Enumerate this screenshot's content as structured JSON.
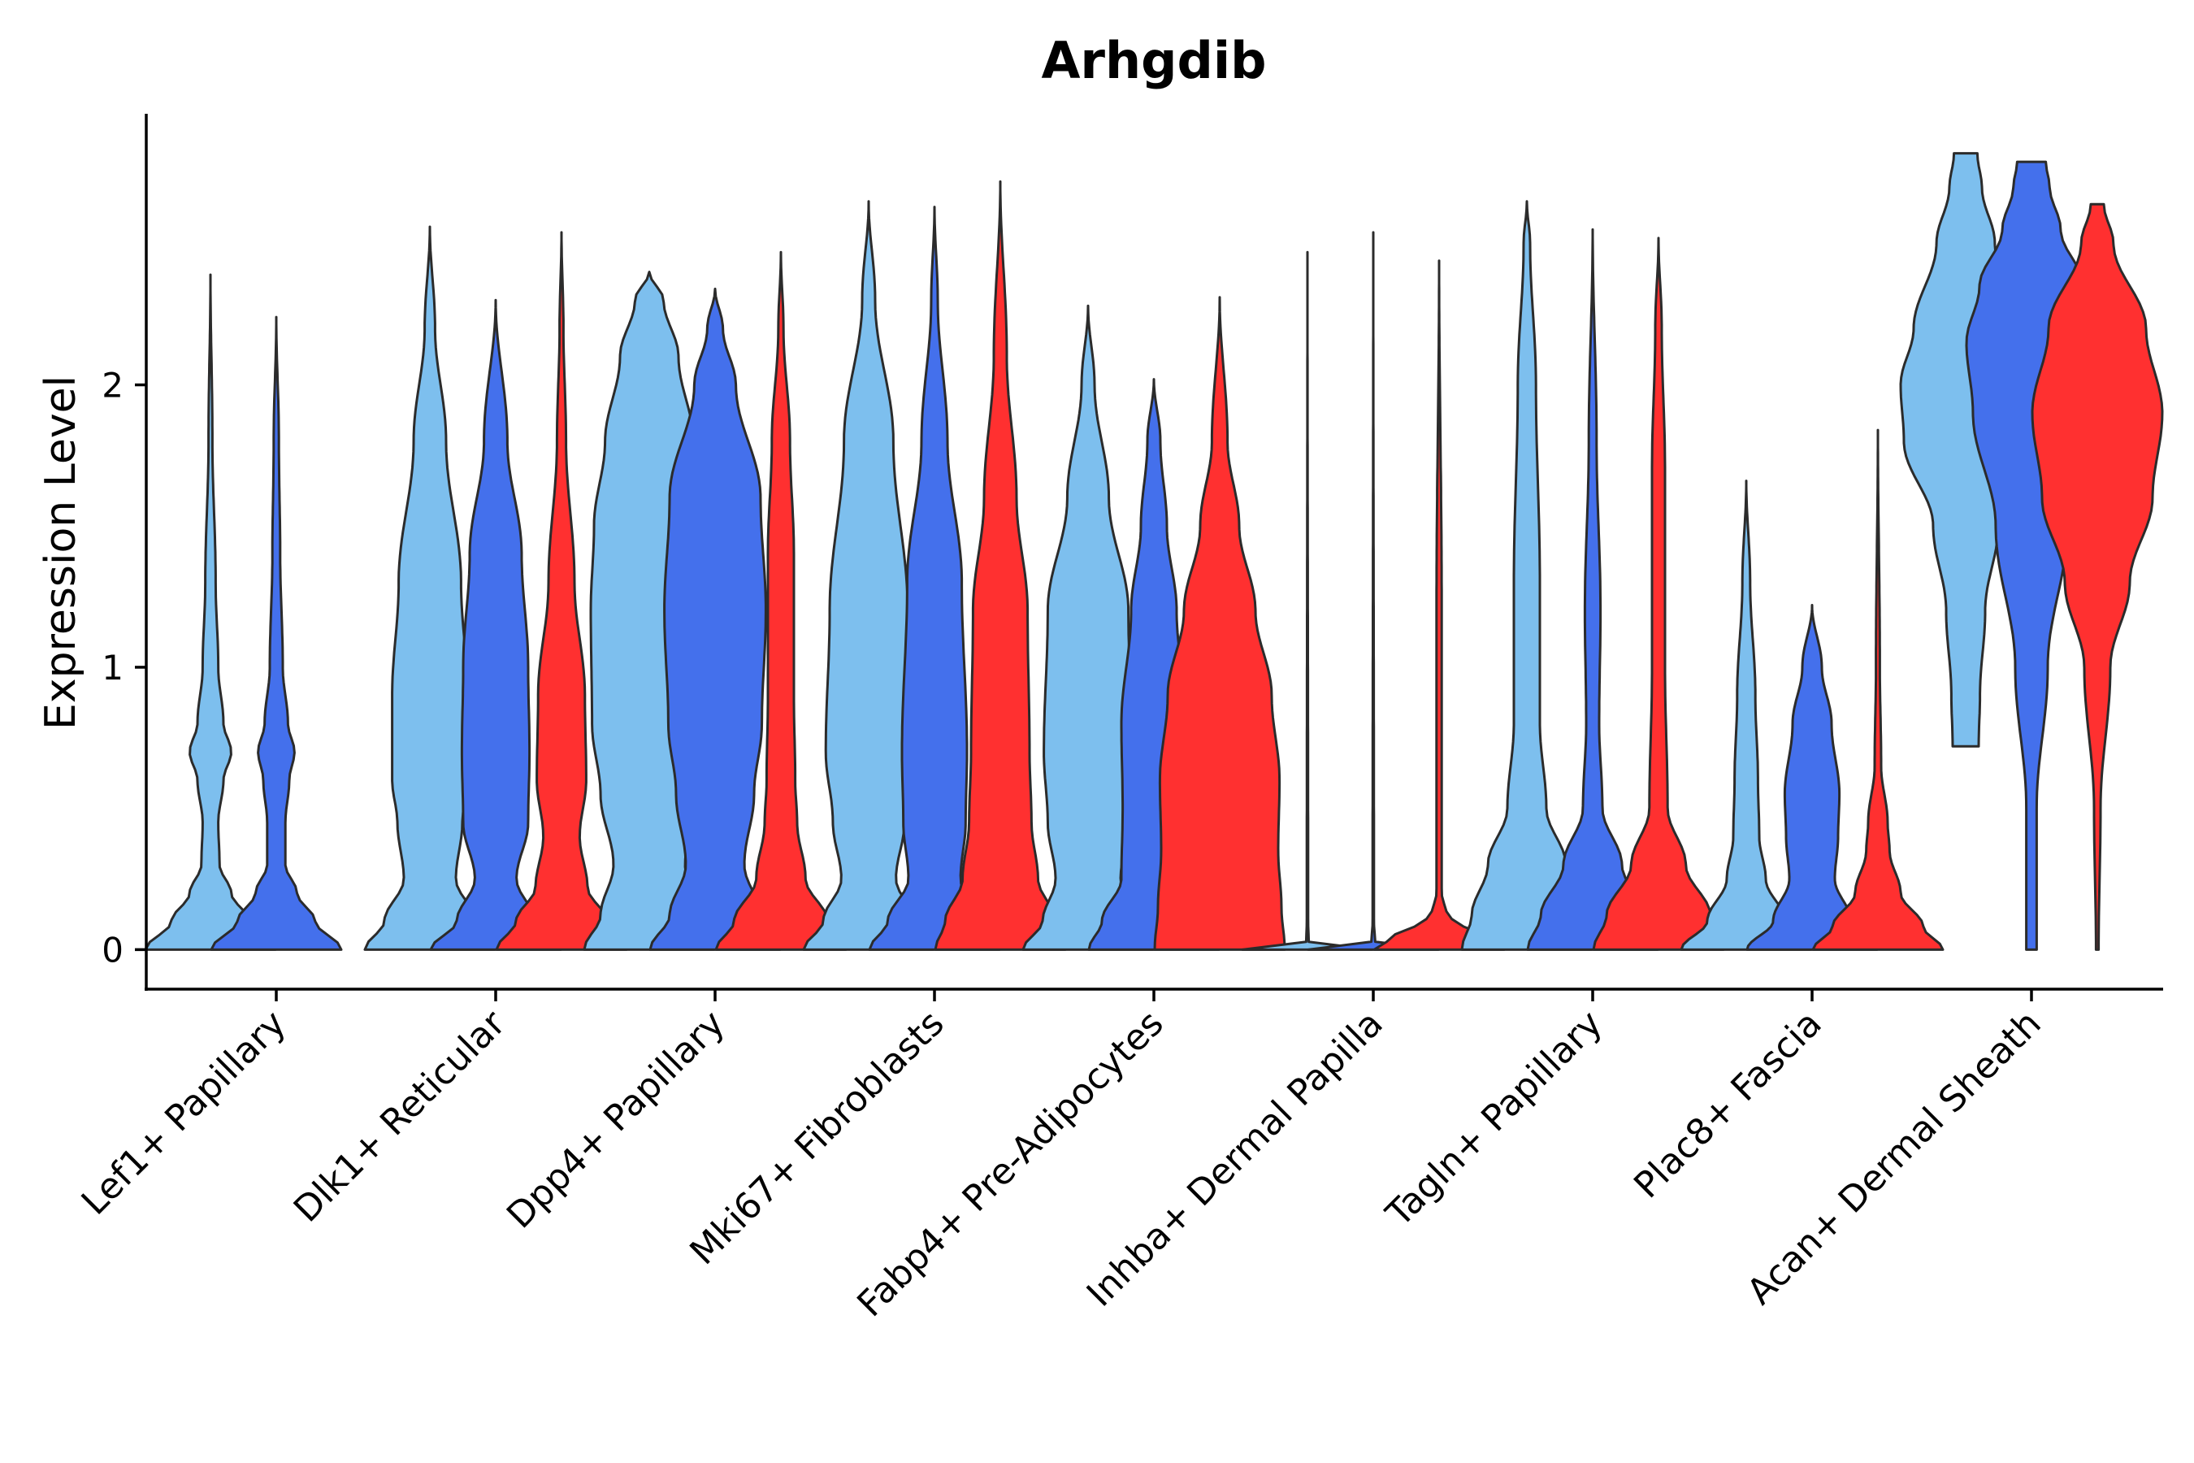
{
  "chart_data": {
    "type": "violin",
    "title": "Arhgdib",
    "xlabel": "",
    "ylabel": "Expression Level",
    "ylim": [
      -0.14,
      2.96
    ],
    "yticks": [
      0,
      1,
      2
    ],
    "grid": false,
    "legend": "none",
    "group_colors": [
      "#7dbfee",
      "#4470ec",
      "#ff3030"
    ],
    "categories": [
      "Lef1+ Papillary",
      "Dlk1+ Reticular",
      "Dpp4+ Papillary",
      "Mki67+ Fibroblasts",
      "Fabp4+ Pre-Adipocytes",
      "Inhba+ Dermal Papilla",
      "Tagln+ Papillary",
      "Plac8+ Fascia",
      "Acan+ Dermal Sheath"
    ],
    "violins": [
      {
        "category": 0,
        "group": 0,
        "min": 0,
        "max": 2.39,
        "profile": [
          [
            0,
            1
          ],
          [
            0.1,
            0.6
          ],
          [
            0.2,
            0.32
          ],
          [
            0.3,
            0.14
          ],
          [
            0.45,
            0.12
          ],
          [
            0.6,
            0.2
          ],
          [
            0.7,
            0.32
          ],
          [
            0.8,
            0.2
          ],
          [
            1.0,
            0.12
          ],
          [
            1.3,
            0.08
          ],
          [
            1.8,
            0.03
          ],
          [
            2.39,
            0
          ]
        ]
      },
      {
        "category": 0,
        "group": 1,
        "min": 0,
        "max": 2.24,
        "profile": [
          [
            0,
            1
          ],
          [
            0.1,
            0.6
          ],
          [
            0.2,
            0.32
          ],
          [
            0.3,
            0.14
          ],
          [
            0.45,
            0.14
          ],
          [
            0.6,
            0.2
          ],
          [
            0.7,
            0.28
          ],
          [
            0.8,
            0.18
          ],
          [
            1.0,
            0.1
          ],
          [
            1.4,
            0.06
          ],
          [
            1.8,
            0.04
          ],
          [
            2.24,
            0
          ]
        ]
      },
      {
        "category": 1,
        "group": 0,
        "min": 0,
        "max": 2.56,
        "profile": [
          [
            0,
            1
          ],
          [
            0.1,
            0.7
          ],
          [
            0.25,
            0.4
          ],
          [
            0.45,
            0.5
          ],
          [
            0.6,
            0.58
          ],
          [
            0.9,
            0.58
          ],
          [
            1.3,
            0.48
          ],
          [
            1.8,
            0.25
          ],
          [
            2.2,
            0.08
          ],
          [
            2.56,
            0
          ]
        ]
      },
      {
        "category": 1,
        "group": 1,
        "min": 0,
        "max": 2.3,
        "profile": [
          [
            0,
            1
          ],
          [
            0.1,
            0.6
          ],
          [
            0.25,
            0.32
          ],
          [
            0.45,
            0.5
          ],
          [
            0.7,
            0.52
          ],
          [
            1.0,
            0.5
          ],
          [
            1.4,
            0.4
          ],
          [
            1.8,
            0.18
          ],
          [
            2.3,
            0
          ]
        ]
      },
      {
        "category": 1,
        "group": 2,
        "min": 0,
        "max": 2.54,
        "profile": [
          [
            0,
            1
          ],
          [
            0.1,
            0.7
          ],
          [
            0.22,
            0.4
          ],
          [
            0.4,
            0.28
          ],
          [
            0.6,
            0.38
          ],
          [
            0.9,
            0.36
          ],
          [
            1.3,
            0.2
          ],
          [
            1.8,
            0.07
          ],
          [
            2.2,
            0.03
          ],
          [
            2.54,
            0
          ]
        ]
      },
      {
        "category": 2,
        "group": 0,
        "min": 0,
        "max": 2.4,
        "profile": [
          [
            0,
            1
          ],
          [
            0.12,
            0.75
          ],
          [
            0.3,
            0.55
          ],
          [
            0.55,
            0.75
          ],
          [
            0.8,
            0.88
          ],
          [
            1.2,
            0.9
          ],
          [
            1.5,
            0.85
          ],
          [
            1.8,
            0.68
          ],
          [
            2.1,
            0.45
          ],
          [
            2.3,
            0.22
          ],
          [
            2.4,
            0
          ]
        ]
      },
      {
        "category": 2,
        "group": 1,
        "min": 0,
        "max": 2.34,
        "profile": [
          [
            0,
            1
          ],
          [
            0.12,
            0.7
          ],
          [
            0.3,
            0.45
          ],
          [
            0.55,
            0.6
          ],
          [
            0.8,
            0.72
          ],
          [
            1.2,
            0.78
          ],
          [
            1.6,
            0.7
          ],
          [
            2.0,
            0.32
          ],
          [
            2.2,
            0.12
          ],
          [
            2.34,
            0
          ]
        ]
      },
      {
        "category": 2,
        "group": 2,
        "min": 0,
        "max": 2.47,
        "profile": [
          [
            0,
            1
          ],
          [
            0.1,
            0.72
          ],
          [
            0.25,
            0.38
          ],
          [
            0.45,
            0.25
          ],
          [
            0.6,
            0.22
          ],
          [
            0.9,
            0.2
          ],
          [
            1.4,
            0.2
          ],
          [
            1.8,
            0.14
          ],
          [
            2.2,
            0.04
          ],
          [
            2.47,
            0
          ]
        ]
      },
      {
        "category": 3,
        "group": 0,
        "min": 0,
        "max": 2.65,
        "profile": [
          [
            0,
            1
          ],
          [
            0.1,
            0.7
          ],
          [
            0.25,
            0.42
          ],
          [
            0.45,
            0.55
          ],
          [
            0.7,
            0.66
          ],
          [
            1.2,
            0.6
          ],
          [
            1.8,
            0.38
          ],
          [
            2.3,
            0.1
          ],
          [
            2.65,
            0
          ]
        ]
      },
      {
        "category": 3,
        "group": 1,
        "min": 0,
        "max": 2.63,
        "profile": [
          [
            0,
            1
          ],
          [
            0.1,
            0.72
          ],
          [
            0.25,
            0.4
          ],
          [
            0.45,
            0.48
          ],
          [
            0.7,
            0.5
          ],
          [
            1.3,
            0.42
          ],
          [
            1.8,
            0.2
          ],
          [
            2.3,
            0.05
          ],
          [
            2.63,
            0
          ]
        ]
      },
      {
        "category": 3,
        "group": 2,
        "min": 0,
        "max": 2.72,
        "profile": [
          [
            0,
            1
          ],
          [
            0.1,
            0.85
          ],
          [
            0.25,
            0.58
          ],
          [
            0.45,
            0.48
          ],
          [
            0.7,
            0.45
          ],
          [
            1.2,
            0.42
          ],
          [
            1.6,
            0.25
          ],
          [
            2.1,
            0.1
          ],
          [
            2.72,
            0
          ]
        ]
      },
      {
        "category": 4,
        "group": 0,
        "min": 0,
        "max": 2.28,
        "profile": [
          [
            0,
            1
          ],
          [
            0.1,
            0.7
          ],
          [
            0.25,
            0.5
          ],
          [
            0.45,
            0.62
          ],
          [
            0.7,
            0.68
          ],
          [
            1.2,
            0.62
          ],
          [
            1.6,
            0.32
          ],
          [
            2.0,
            0.1
          ],
          [
            2.28,
            0
          ]
        ]
      },
      {
        "category": 4,
        "group": 1,
        "min": 0,
        "max": 2.02,
        "profile": [
          [
            0,
            1
          ],
          [
            0.1,
            0.8
          ],
          [
            0.25,
            0.5
          ],
          [
            0.5,
            0.48
          ],
          [
            0.8,
            0.5
          ],
          [
            1.2,
            0.35
          ],
          [
            1.5,
            0.2
          ],
          [
            1.8,
            0.1
          ],
          [
            2.02,
            0
          ]
        ]
      },
      {
        "category": 4,
        "group": 2,
        "min": 0,
        "max": 2.31,
        "profile": [
          [
            0,
            1
          ],
          [
            0.15,
            0.95
          ],
          [
            0.35,
            0.9
          ],
          [
            0.6,
            0.92
          ],
          [
            0.9,
            0.8
          ],
          [
            1.2,
            0.55
          ],
          [
            1.5,
            0.3
          ],
          [
            1.8,
            0.12
          ],
          [
            2.31,
            0
          ]
        ]
      },
      {
        "category": 5,
        "group": 0,
        "min": 0,
        "max": 2.47,
        "profile": [
          [
            0,
            1
          ],
          [
            0.02,
            0.02
          ],
          [
            0.1,
            0.01
          ],
          [
            2.47,
            0
          ]
        ]
      },
      {
        "category": 5,
        "group": 1,
        "min": 0,
        "max": 2.54,
        "profile": [
          [
            0,
            1
          ],
          [
            0.02,
            0.03
          ],
          [
            0.1,
            0.01
          ],
          [
            2.54,
            0
          ]
        ]
      },
      {
        "category": 5,
        "group": 2,
        "min": 0,
        "max": 2.44,
        "profile": [
          [
            0,
            1
          ],
          [
            0.04,
            0.75
          ],
          [
            0.09,
            0.35
          ],
          [
            0.12,
            0.12
          ],
          [
            0.2,
            0.04
          ],
          [
            1.2,
            0.04
          ],
          [
            2.44,
            0
          ]
        ]
      },
      {
        "category": 6,
        "group": 0,
        "min": 0,
        "max": 2.65,
        "profile": [
          [
            0,
            1
          ],
          [
            0.12,
            0.85
          ],
          [
            0.3,
            0.6
          ],
          [
            0.5,
            0.3
          ],
          [
            0.8,
            0.2
          ],
          [
            1.3,
            0.2
          ],
          [
            2.0,
            0.14
          ],
          [
            2.5,
            0.05
          ],
          [
            2.65,
            0
          ]
        ]
      },
      {
        "category": 6,
        "group": 1,
        "min": 0,
        "max": 2.55,
        "profile": [
          [
            0,
            1
          ],
          [
            0.12,
            0.8
          ],
          [
            0.3,
            0.45
          ],
          [
            0.5,
            0.15
          ],
          [
            0.8,
            0.1
          ],
          [
            1.2,
            0.12
          ],
          [
            1.8,
            0.06
          ],
          [
            2.55,
            0
          ]
        ]
      },
      {
        "category": 6,
        "group": 2,
        "min": 0,
        "max": 2.52,
        "profile": [
          [
            0,
            1
          ],
          [
            0.12,
            0.8
          ],
          [
            0.3,
            0.42
          ],
          [
            0.5,
            0.14
          ],
          [
            1.0,
            0.1
          ],
          [
            1.7,
            0.1
          ],
          [
            2.2,
            0.05
          ],
          [
            2.52,
            0
          ]
        ]
      },
      {
        "category": 7,
        "group": 0,
        "min": 0,
        "max": 1.66,
        "profile": [
          [
            0,
            1
          ],
          [
            0.1,
            0.6
          ],
          [
            0.25,
            0.3
          ],
          [
            0.4,
            0.2
          ],
          [
            0.6,
            0.18
          ],
          [
            0.9,
            0.14
          ],
          [
            1.3,
            0.06
          ],
          [
            1.66,
            0
          ]
        ]
      },
      {
        "category": 7,
        "group": 1,
        "min": 0,
        "max": 1.22,
        "profile": [
          [
            0,
            1
          ],
          [
            0.1,
            0.6
          ],
          [
            0.25,
            0.35
          ],
          [
            0.4,
            0.4
          ],
          [
            0.55,
            0.42
          ],
          [
            0.8,
            0.3
          ],
          [
            1.0,
            0.15
          ],
          [
            1.22,
            0
          ]
        ]
      },
      {
        "category": 7,
        "group": 2,
        "min": 0,
        "max": 1.84,
        "profile": [
          [
            0,
            1
          ],
          [
            0.08,
            0.7
          ],
          [
            0.2,
            0.35
          ],
          [
            0.35,
            0.18
          ],
          [
            0.45,
            0.15
          ],
          [
            0.65,
            0.05
          ],
          [
            1.0,
            0.03
          ],
          [
            1.84,
            0
          ]
        ]
      },
      {
        "category": 8,
        "group": 0,
        "min": 0.72,
        "max": 2.82,
        "profile": [
          [
            0.72,
            0.2
          ],
          [
            0.9,
            0.22
          ],
          [
            1.2,
            0.3
          ],
          [
            1.5,
            0.5
          ],
          [
            1.8,
            0.95
          ],
          [
            2.0,
            1.0
          ],
          [
            2.2,
            0.8
          ],
          [
            2.5,
            0.45
          ],
          [
            2.7,
            0.25
          ],
          [
            2.82,
            0.18
          ]
        ]
      },
      {
        "category": 8,
        "group": 1,
        "min": 0,
        "max": 2.79,
        "profile": [
          [
            0,
            0.08
          ],
          [
            0.5,
            0.08
          ],
          [
            1.0,
            0.25
          ],
          [
            1.5,
            0.55
          ],
          [
            1.9,
            0.9
          ],
          [
            2.15,
            1.0
          ],
          [
            2.35,
            0.8
          ],
          [
            2.55,
            0.45
          ],
          [
            2.7,
            0.28
          ],
          [
            2.79,
            0.22
          ]
        ]
      },
      {
        "category": 8,
        "group": 2,
        "min": 0,
        "max": 2.64,
        "profile": [
          [
            0,
            0.02
          ],
          [
            0.5,
            0.05
          ],
          [
            1.0,
            0.2
          ],
          [
            1.3,
            0.5
          ],
          [
            1.6,
            0.85
          ],
          [
            1.9,
            1.0
          ],
          [
            2.2,
            0.75
          ],
          [
            2.5,
            0.25
          ],
          [
            2.64,
            0.1
          ]
        ]
      }
    ]
  }
}
